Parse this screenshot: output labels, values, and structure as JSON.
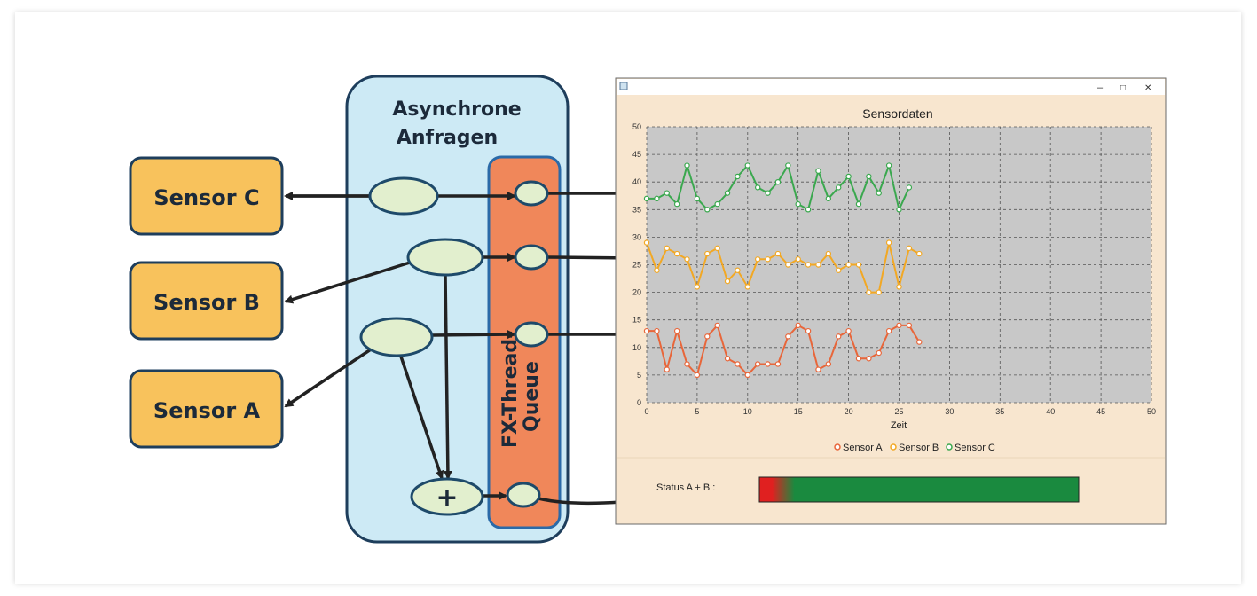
{
  "diagram": {
    "async_title_line1": "Asynchrone",
    "async_title_line2": "Anfragen",
    "queue_label_line1": "FX-Thread-",
    "queue_label_line2": "Queue",
    "plus_symbol": "+",
    "sensors": [
      {
        "label": "Sensor C"
      },
      {
        "label": "Sensor B"
      },
      {
        "label": "Sensor A"
      }
    ]
  },
  "window": {
    "controls": {
      "minimize": "–",
      "maximize": "□",
      "close": "✕"
    },
    "status_label": "Status A + B :",
    "status_color_start": "#e02020",
    "status_color_end": "#1a8a3f"
  },
  "chart_data": {
    "type": "line",
    "title": "Sensordaten",
    "xlabel": "Zeit",
    "ylabel": "",
    "xlim": [
      0,
      50
    ],
    "ylim": [
      0,
      50
    ],
    "x_ticks": [
      "0",
      "5",
      "10",
      "15",
      "20",
      "25",
      "30",
      "35",
      "40",
      "45",
      "50"
    ],
    "y_ticks": [
      "0",
      "5",
      "10",
      "15",
      "20",
      "25",
      "30",
      "35",
      "40",
      "45",
      "50"
    ],
    "grid": true,
    "legend_position": "bottom",
    "x": [
      0,
      1,
      2,
      3,
      4,
      5,
      6,
      7,
      8,
      9,
      10,
      11,
      12,
      13,
      14,
      15,
      16,
      17,
      18,
      19,
      20,
      21,
      22,
      23,
      24,
      25,
      26,
      27
    ],
    "series": [
      {
        "name": "Sensor A",
        "color": "#e8663a",
        "values": [
          13,
          13,
          6,
          13,
          7,
          5,
          12,
          14,
          8,
          7,
          5,
          7,
          7,
          7,
          12,
          14,
          13,
          6,
          7,
          12,
          13,
          8,
          8,
          9,
          13,
          14,
          14,
          11
        ]
      },
      {
        "name": "Sensor B",
        "color": "#f2a824",
        "values": [
          29,
          24,
          28,
          27,
          26,
          21,
          27,
          28,
          22,
          24,
          21,
          26,
          26,
          27,
          25,
          26,
          25,
          25,
          27,
          24,
          25,
          25,
          20,
          20,
          29,
          21,
          28,
          27
        ]
      },
      {
        "name": "Sensor C",
        "color": "#3aa84e",
        "values": [
          37,
          37,
          38,
          36,
          43,
          37,
          35,
          36,
          38,
          41,
          43,
          39,
          38,
          40,
          43,
          36,
          35,
          42,
          37,
          39,
          41,
          36,
          41,
          38,
          43,
          35,
          39,
          null
        ]
      }
    ]
  }
}
